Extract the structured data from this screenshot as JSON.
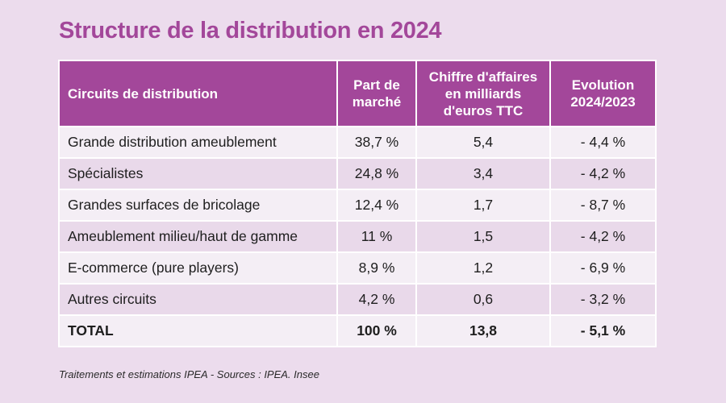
{
  "title": "Structure de la distribution en 2024",
  "chart_data": {
    "type": "table",
    "title": "Structure de la distribution en 2024",
    "columns": [
      "Circuits de distribution",
      "Part de marché",
      "Chiffre d'affaires en milliards d'euros TTC",
      "Evolution 2024/2023"
    ],
    "rows": [
      [
        "Grande distribution ameublement",
        "38,7 %",
        "5,4",
        "- 4,4 %"
      ],
      [
        "Spécialistes",
        "24,8 %",
        "3,4",
        "- 4,2 %"
      ],
      [
        "Grandes surfaces de bricolage",
        "12,4 %",
        "1,7",
        "- 8,7 %"
      ],
      [
        "Ameublement milieu/haut de gamme",
        "11 %",
        "1,5",
        "- 4,2 %"
      ],
      [
        "E-commerce (pure players)",
        "8,9 %",
        "1,2",
        "- 6,9 %"
      ],
      [
        "Autres circuits",
        "4,2 %",
        "0,6",
        "- 3,2 %"
      ]
    ],
    "total": [
      "TOTAL",
      "100 %",
      "13,8",
      "- 5,1 %"
    ]
  },
  "source": "Traitements et estimations IPEA - Sources : IPEA. Insee",
  "colors": {
    "accent": "#a3479a",
    "background": "#ecdced",
    "row_light": "#f4eef5",
    "row_dark": "#e9d9ea"
  }
}
